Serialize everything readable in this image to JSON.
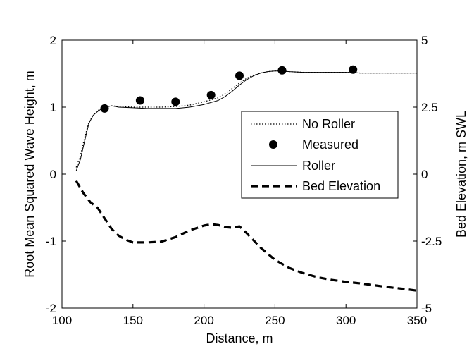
{
  "chart_data": {
    "type": "line",
    "title": "",
    "xlabel": "Distance, m",
    "ylabel_left": "Root Mean Squared Wave Height, m",
    "ylabel_right": "Bed Elevation, m SWL",
    "xlim": [
      100,
      350
    ],
    "ylim_left": [
      -2,
      2
    ],
    "ylim_right": [
      -5,
      5
    ],
    "x_ticks": [
      "100",
      "150",
      "200",
      "250",
      "300",
      "350"
    ],
    "y_left_ticks": [
      "-2",
      "-1",
      "0",
      "1",
      "2"
    ],
    "y_right_ticks": [
      "-5",
      "-2.5",
      "0",
      "2.5",
      "5"
    ],
    "grid": false,
    "legend_position": "center-right",
    "series": [
      {
        "name": "No Roller",
        "axis": "left",
        "style": "dotted",
        "color": "#000000",
        "x": [
          110,
          113,
          116,
          119,
          122,
          126,
          130,
          135,
          140,
          150,
          160,
          170,
          180,
          190,
          200,
          210,
          215,
          220,
          225,
          230,
          235,
          240,
          245,
          250,
          255,
          260,
          270,
          280,
          290,
          300,
          310,
          320,
          330,
          340,
          350
        ],
        "y": [
          0.1,
          0.28,
          0.55,
          0.78,
          0.88,
          0.96,
          1.0,
          1.02,
          1.01,
          1.0,
          1.0,
          1.0,
          1.01,
          1.03,
          1.08,
          1.14,
          1.2,
          1.28,
          1.36,
          1.43,
          1.48,
          1.51,
          1.53,
          1.54,
          1.54,
          1.53,
          1.52,
          1.52,
          1.52,
          1.52,
          1.51,
          1.51,
          1.51,
          1.51,
          1.51
        ]
      },
      {
        "name": "Measured",
        "axis": "left",
        "style": "markers",
        "color": "#000000",
        "x": [
          130,
          155,
          180,
          205,
          225,
          255,
          305
        ],
        "y": [
          0.98,
          1.1,
          1.08,
          1.18,
          1.47,
          1.55,
          1.56
        ]
      },
      {
        "name": "Roller",
        "axis": "left",
        "style": "solid",
        "color": "#000000",
        "x": [
          110,
          113,
          116,
          119,
          122,
          126,
          130,
          135,
          140,
          150,
          160,
          170,
          180,
          190,
          200,
          210,
          215,
          220,
          225,
          230,
          235,
          240,
          245,
          250,
          255,
          260,
          270,
          280,
          290,
          300,
          310,
          320,
          330,
          340,
          350
        ],
        "y": [
          0.05,
          0.22,
          0.5,
          0.76,
          0.88,
          0.95,
          1.0,
          1.02,
          1.0,
          0.99,
          0.98,
          0.98,
          0.98,
          1.0,
          1.04,
          1.1,
          1.16,
          1.24,
          1.33,
          1.41,
          1.47,
          1.51,
          1.53,
          1.54,
          1.54,
          1.53,
          1.52,
          1.52,
          1.52,
          1.52,
          1.51,
          1.51,
          1.51,
          1.51,
          1.51
        ]
      },
      {
        "name": "Bed Elevation",
        "axis": "right",
        "style": "dashed",
        "color": "#000000",
        "x": [
          110,
          115,
          120,
          125,
          130,
          135,
          140,
          145,
          150,
          160,
          170,
          180,
          190,
          200,
          205,
          210,
          215,
          220,
          225,
          230,
          240,
          250,
          260,
          270,
          280,
          290,
          300,
          310,
          320,
          330,
          340,
          350
        ],
        "y": [
          -0.25,
          -0.7,
          -1.05,
          -1.25,
          -1.65,
          -2.05,
          -2.3,
          -2.45,
          -2.55,
          -2.55,
          -2.52,
          -2.35,
          -2.1,
          -1.92,
          -1.87,
          -1.9,
          -1.98,
          -2.0,
          -1.95,
          -2.2,
          -2.75,
          -3.2,
          -3.5,
          -3.7,
          -3.85,
          -3.95,
          -4.02,
          -4.08,
          -4.15,
          -4.22,
          -4.28,
          -4.35
        ]
      }
    ]
  }
}
